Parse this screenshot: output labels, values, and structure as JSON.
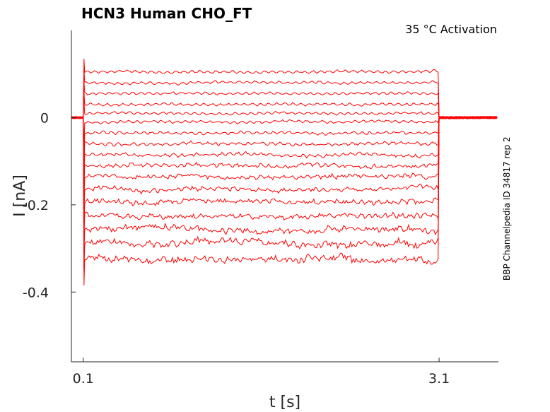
{
  "chart_data": {
    "type": "line",
    "title": "HCN3  Human  CHO_FT",
    "subtitle": "35 °C  Activation",
    "side_label": "BBP Channelpedia ID 34817 rep 2",
    "xlabel": "t [s]",
    "ylabel": "I [nA]",
    "xlim": [
      0.0,
      3.6
    ],
    "ylim": [
      -0.56,
      0.2
    ],
    "x_ticks": [
      0.1,
      3.1
    ],
    "x_tick_labels": [
      "0.1",
      "3.1"
    ],
    "y_ticks": [
      0,
      -0.2,
      -0.4
    ],
    "y_tick_labels": [
      "0",
      "-0.2",
      "-0.4"
    ],
    "grid": false,
    "color": "#ff0000",
    "step_start_s": 0.1,
    "step_end_s": 3.1,
    "holding_current_nA": 0.0,
    "series_levels_nA": [
      0.105,
      0.08,
      0.055,
      0.03,
      0.01,
      -0.01,
      -0.035,
      -0.06,
      -0.085,
      -0.11,
      -0.135,
      -0.165,
      -0.195,
      -0.225,
      -0.255,
      -0.29,
      -0.325
    ]
  }
}
